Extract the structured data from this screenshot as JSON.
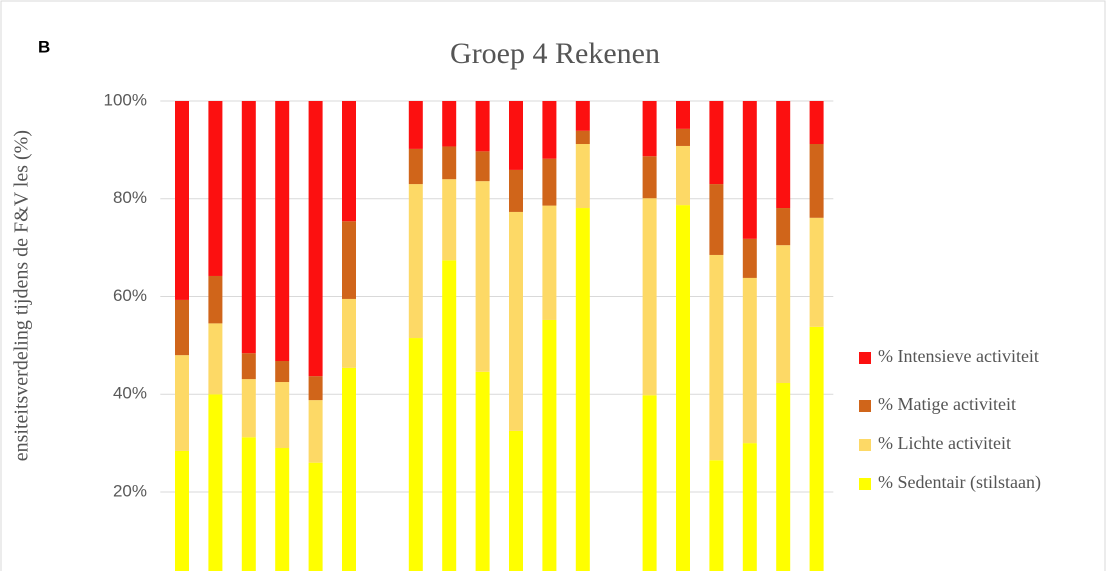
{
  "chart_data": {
    "type": "stacked_bar",
    "panel_label": "B",
    "title": "Groep 4 Rekenen",
    "y_label": "ensiteitsverdeling tijdens de F&V les (%)",
    "categories": [
      null,
      null,
      null,
      null,
      null,
      null,
      null,
      null,
      null,
      null,
      null,
      null,
      null,
      null,
      null,
      null,
      null,
      null,
      null,
      null
    ],
    "series": [
      {
        "name": "% Sedentair (stilstaan)",
        "color": "#ffff00",
        "values": [
          28.4,
          40,
          31.2,
          29,
          26,
          45.4,
          null,
          51.5,
          67.4,
          44.6,
          32.5,
          55.2,
          78.1,
          null,
          39.8,
          78.7,
          26.5,
          30,
          42.3,
          53.8
        ]
      },
      {
        "name": "% Lichte activiteit",
        "color": "#fdd966",
        "values": [
          19.6,
          14.5,
          11.9,
          13.5,
          12.8,
          14.1,
          null,
          31.5,
          16.6,
          39,
          44.8,
          23.4,
          13.1,
          null,
          40.3,
          12.1,
          42,
          33.8,
          28.2,
          22.3
        ]
      },
      {
        "name": "% Matige activiteit",
        "color": "#d0651a",
        "values": [
          11.3,
          9.7,
          5.3,
          4.3,
          4.9,
          15.9,
          null,
          7.2,
          6.7,
          6.1,
          8.6,
          9.6,
          2.7,
          null,
          8.6,
          3.5,
          14.5,
          8,
          7.6,
          15.1
        ]
      },
      {
        "name": "% Intensieve activiteit",
        "color": "#fc1010",
        "values": [
          40.7,
          35.8,
          51.6,
          53.2,
          56.3,
          24.6,
          null,
          9.8,
          9.3,
          10.3,
          14.1,
          11.8,
          6.1,
          null,
          11.3,
          5.7,
          17,
          28.2,
          21.9,
          8.8
        ]
      }
    ],
    "ylim": [
      0,
      100
    ],
    "yticks": [
      {
        "value": 20,
        "label": "20%"
      },
      {
        "value": 40,
        "label": "40%"
      },
      {
        "value": 60,
        "label": "60%"
      },
      {
        "value": 80,
        "label": "80%"
      },
      {
        "value": 100,
        "label": "100%"
      }
    ],
    "grid": true,
    "legend": "right"
  }
}
